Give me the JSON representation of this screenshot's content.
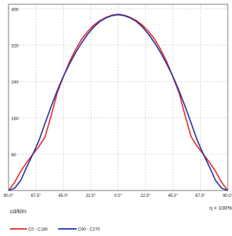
{
  "chart_data": {
    "type": "line",
    "title": "",
    "x_ticks": [
      "90.0°",
      "67.5°",
      "45.0°",
      "22.5°",
      "0.0°",
      "22.5°",
      "45.0°",
      "67.5°",
      "90.0°"
    ],
    "x_angles": [
      -90,
      -67.5,
      -45,
      -22.5,
      0,
      22.5,
      45,
      67.5,
      90
    ],
    "y_ticks": [
      80,
      160,
      240,
      320,
      400
    ],
    "ylim": [
      0,
      410
    ],
    "xlim": [
      -90,
      90
    ],
    "ylabel": "cd/klm",
    "efficiency_label": "η = 100%",
    "grid": true,
    "legend_position": "bottom-left",
    "series": [
      {
        "name": "C0 - C180",
        "color": "#e8312f",
        "points": [
          [
            -90,
            0
          ],
          [
            -85,
            18
          ],
          [
            -80,
            42
          ],
          [
            -75,
            62
          ],
          [
            -70,
            80
          ],
          [
            -65,
            97
          ],
          [
            -60,
            118
          ],
          [
            -55,
            165
          ],
          [
            -50,
            215
          ],
          [
            -45,
            250
          ],
          [
            -40,
            283
          ],
          [
            -35,
            310
          ],
          [
            -30,
            333
          ],
          [
            -25,
            350
          ],
          [
            -20,
            364
          ],
          [
            -15,
            374
          ],
          [
            -10,
            381
          ],
          [
            -5,
            386
          ],
          [
            0,
            388
          ],
          [
            5,
            386
          ],
          [
            10,
            381
          ],
          [
            15,
            374
          ],
          [
            20,
            364
          ],
          [
            25,
            350
          ],
          [
            30,
            333
          ],
          [
            35,
            310
          ],
          [
            40,
            283
          ],
          [
            45,
            250
          ],
          [
            50,
            215
          ],
          [
            55,
            165
          ],
          [
            60,
            118
          ],
          [
            65,
            97
          ],
          [
            70,
            80
          ],
          [
            75,
            62
          ],
          [
            80,
            42
          ],
          [
            85,
            18
          ],
          [
            90,
            0
          ]
        ]
      },
      {
        "name": "C90 - C270",
        "color": "#2b3aa6",
        "points": [
          [
            -90,
            0
          ],
          [
            -85,
            5
          ],
          [
            -80,
            22
          ],
          [
            -75,
            52
          ],
          [
            -70,
            80
          ],
          [
            -65,
            110
          ],
          [
            -60,
            148
          ],
          [
            -55,
            185
          ],
          [
            -50,
            220
          ],
          [
            -45,
            251
          ],
          [
            -40,
            278
          ],
          [
            -35,
            303
          ],
          [
            -30,
            325
          ],
          [
            -25,
            344
          ],
          [
            -20,
            360
          ],
          [
            -15,
            372
          ],
          [
            -10,
            380
          ],
          [
            -5,
            385
          ],
          [
            0,
            387
          ],
          [
            5,
            385
          ],
          [
            10,
            380
          ],
          [
            15,
            372
          ],
          [
            20,
            360
          ],
          [
            25,
            344
          ],
          [
            30,
            325
          ],
          [
            35,
            303
          ],
          [
            40,
            278
          ],
          [
            45,
            251
          ],
          [
            50,
            220
          ],
          [
            55,
            185
          ],
          [
            60,
            148
          ],
          [
            65,
            110
          ],
          [
            70,
            80
          ],
          [
            75,
            52
          ],
          [
            80,
            22
          ],
          [
            85,
            5
          ],
          [
            90,
            0
          ]
        ]
      }
    ]
  },
  "colors": {
    "grid": "#c8c8c8",
    "axis": "#777777",
    "background": "#ffffff"
  }
}
